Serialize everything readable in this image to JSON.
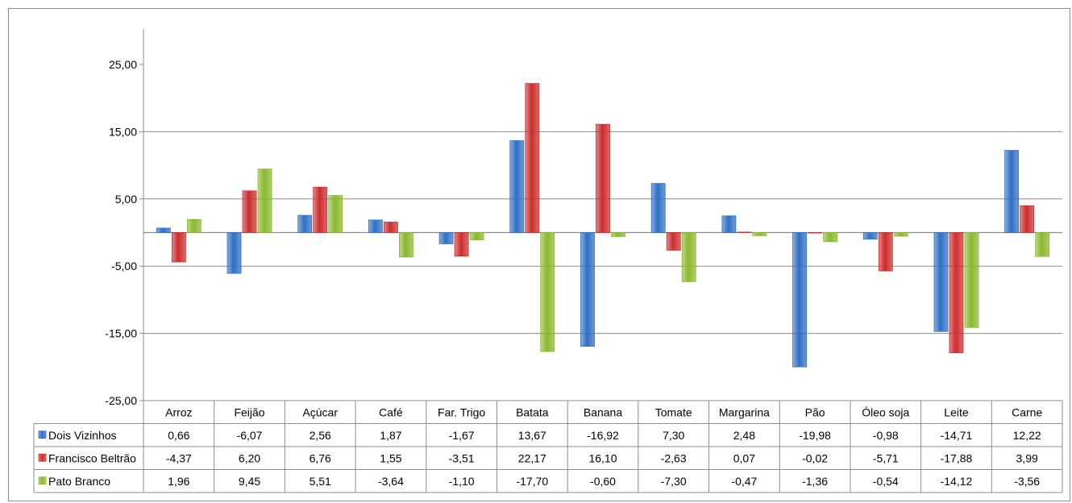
{
  "chart_data": {
    "type": "bar",
    "title": "",
    "xlabel": "",
    "ylabel": "",
    "ylim": [
      -25,
      25
    ],
    "yticks": [
      "25,00",
      "15,00",
      "5,00",
      "-5,00",
      "-15,00",
      "-25,00"
    ],
    "ytick_values": [
      25,
      15,
      5,
      -5,
      -15,
      -25
    ],
    "grid": true,
    "legend": "data-table",
    "categories": [
      "Arroz",
      "Feijão",
      "Açúcar",
      "Café",
      "Far. Trigo",
      "Batata",
      "Banana",
      "Tomate",
      "Margarina",
      "Pão",
      "Óleo soja",
      "Leite",
      "Carne"
    ],
    "series": [
      {
        "name": "Dois Vizinhos",
        "color": "#2e6fc4",
        "values": [
          0.66,
          -6.07,
          2.56,
          1.87,
          -1.67,
          13.67,
          -16.92,
          7.3,
          2.48,
          -19.98,
          -0.98,
          -14.71,
          12.22
        ],
        "labels": [
          "0,66",
          "-6,07",
          "2,56",
          "1,87",
          "-1,67",
          "13,67",
          "-16,92",
          "7,30",
          "2,48",
          "-19,98",
          "-0,98",
          "-14,71",
          "12,22"
        ]
      },
      {
        "name": "Francisco Beltrão",
        "color": "#cc2c2c",
        "values": [
          -4.37,
          6.2,
          6.76,
          1.55,
          -3.51,
          22.17,
          16.1,
          -2.63,
          0.07,
          -0.02,
          -5.71,
          -17.88,
          3.99
        ],
        "labels": [
          "-4,37",
          "6,20",
          "6,76",
          "1,55",
          "-3,51",
          "22,17",
          "16,10",
          "-2,63",
          "0,07",
          "-0,02",
          "-5,71",
          "-17,88",
          "3,99"
        ]
      },
      {
        "name": "Pato Branco",
        "color": "#8ab82c",
        "values": [
          1.96,
          9.45,
          5.51,
          -3.64,
          -1.1,
          -17.7,
          -0.6,
          -7.3,
          -0.47,
          -1.36,
          -0.54,
          -14.12,
          -3.56
        ],
        "labels": [
          "1,96",
          "9,45",
          "5,51",
          "-3,64",
          "-1,10",
          "-17,70",
          "-0,60",
          "-7,30",
          "-0,47",
          "-1,36",
          "-0,54",
          "-14,12",
          "-3,56"
        ]
      }
    ]
  }
}
